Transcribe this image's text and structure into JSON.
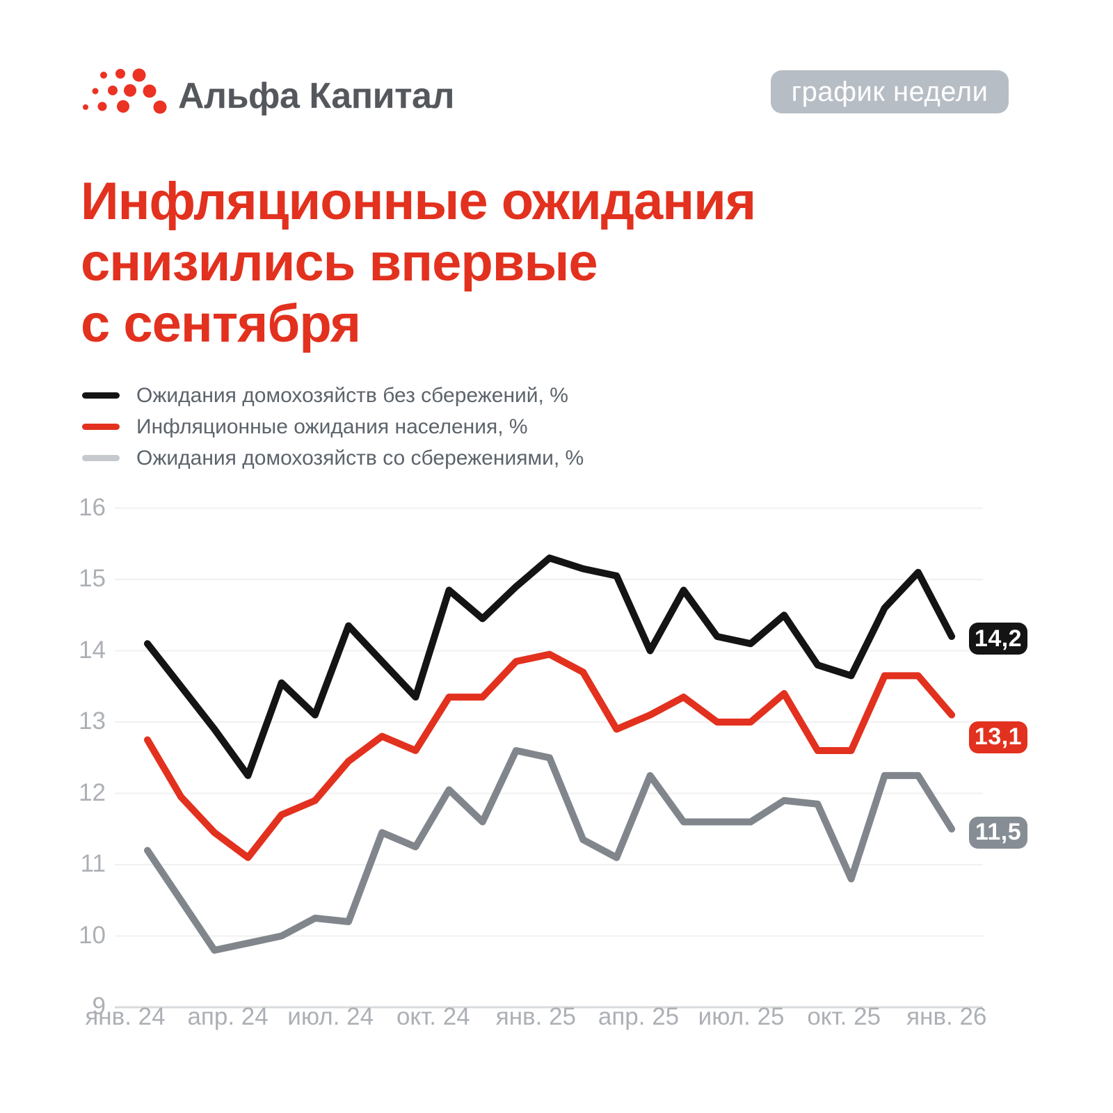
{
  "header": {
    "logo_text": "Альфа Капитал",
    "badge_label": "график недели"
  },
  "title": {
    "lines": [
      "Инфляционные ожидания",
      "снизились впервые",
      "с сентября"
    ]
  },
  "legend": [
    {
      "label": "Ожидания домохозяйств без сбережений, %",
      "swatch_color": "#141414"
    },
    {
      "label": "Инфляционные ожидания населения, %",
      "swatch_color": "#E2311E"
    },
    {
      "label": "Ожидания домохозяйств со сбережениями, %",
      "swatch_color": "#C6C9CD"
    }
  ],
  "colors": {
    "accent_red": "#E2311E",
    "black_line": "#141414",
    "gray_line": "#80868C",
    "gray_badge": "#868D94",
    "grid": "#F0F0F1",
    "grid_bottom": "#D9DBDD",
    "axis_text": "#ACB0B5",
    "logo_red": "#EB3223"
  },
  "chart_data": {
    "type": "line",
    "x_monthly_count": 25,
    "x_range": "янв. 24 — янв. 26 (помесячно)",
    "x_tick_labels": [
      "янв. 24",
      "апр. 24",
      "июл. 24",
      "окт. 24",
      "янв. 25",
      "апр. 25",
      "июл. 25",
      "окт. 25",
      "янв. 26"
    ],
    "y_ticks": [
      16,
      15,
      14,
      13,
      12,
      11,
      10,
      9
    ],
    "ylim": [
      9,
      16
    ],
    "grid": "horizontal",
    "legend_position": "top-left",
    "series": [
      {
        "name": "Ожидания домохозяйств без сбережений, %",
        "color": "#141414",
        "end_label": "14,2",
        "end_label_bg": "#141414",
        "values": [
          14.1,
          13.5,
          12.9,
          12.25,
          13.55,
          13.1,
          14.35,
          13.85,
          13.35,
          14.85,
          14.45,
          14.9,
          15.3,
          15.15,
          15.05,
          14.0,
          14.85,
          14.2,
          14.1,
          14.5,
          13.8,
          13.65,
          14.6,
          15.1,
          14.2
        ]
      },
      {
        "name": "Инфляционные ожидания населения, %",
        "color": "#E2311E",
        "end_label": "13,1",
        "end_label_bg": "#E2311E",
        "values": [
          12.75,
          11.95,
          11.45,
          11.1,
          11.7,
          11.9,
          12.45,
          12.8,
          12.6,
          13.35,
          13.35,
          13.85,
          13.95,
          13.7,
          12.9,
          13.1,
          13.35,
          13.0,
          13.0,
          13.4,
          12.6,
          12.6,
          13.65,
          13.65,
          13.1
        ]
      },
      {
        "name": "Ожидания домохозяйств со сбережениями, %",
        "color": "#80868C",
        "end_label": "11,5",
        "end_label_bg": "#868D94",
        "values": [
          11.2,
          10.5,
          9.8,
          9.9,
          10.0,
          10.25,
          10.2,
          11.45,
          11.25,
          12.05,
          11.6,
          12.6,
          12.5,
          11.35,
          11.1,
          12.25,
          11.6,
          11.6,
          11.6,
          11.9,
          11.85,
          10.8,
          12.25,
          12.25,
          11.5
        ]
      }
    ]
  }
}
